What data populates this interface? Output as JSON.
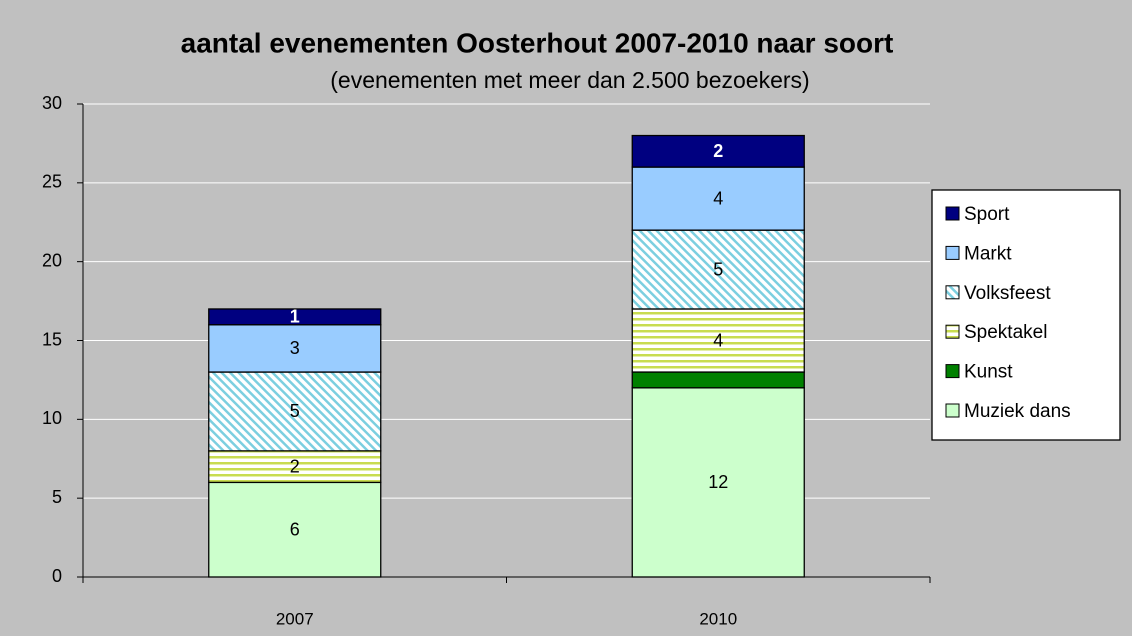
{
  "chart_data": {
    "type": "stacked-bar",
    "title": "aantal evenementen Oosterhout 2007-2010 naar soort",
    "subtitle": "(evenementen met meer dan 2.500 bezoekers)",
    "categories": [
      "2007",
      "2010"
    ],
    "series": [
      {
        "name": "Muziek dans",
        "color": "#ccffcc",
        "values": [
          6,
          12
        ]
      },
      {
        "name": "Kunst",
        "color": "#008000",
        "values": [
          0,
          1
        ],
        "data_labels": false
      },
      {
        "name": "Spektakel",
        "color": "#c8dc50",
        "pattern": "horizontal",
        "values": [
          2,
          4
        ]
      },
      {
        "name": "Volksfeest",
        "color": "#7ccfe0",
        "pattern": "diagonal",
        "values": [
          5,
          5
        ]
      },
      {
        "name": "Markt",
        "color": "#99ccff",
        "values": [
          3,
          4
        ]
      },
      {
        "name": "Sport",
        "color": "#000080",
        "label_color": "#ffffff",
        "values": [
          1,
          2
        ]
      }
    ],
    "ylim": [
      0,
      30
    ],
    "yticks": [
      0,
      5,
      10,
      15,
      20,
      25,
      30
    ],
    "grid": true,
    "legend": "right"
  }
}
